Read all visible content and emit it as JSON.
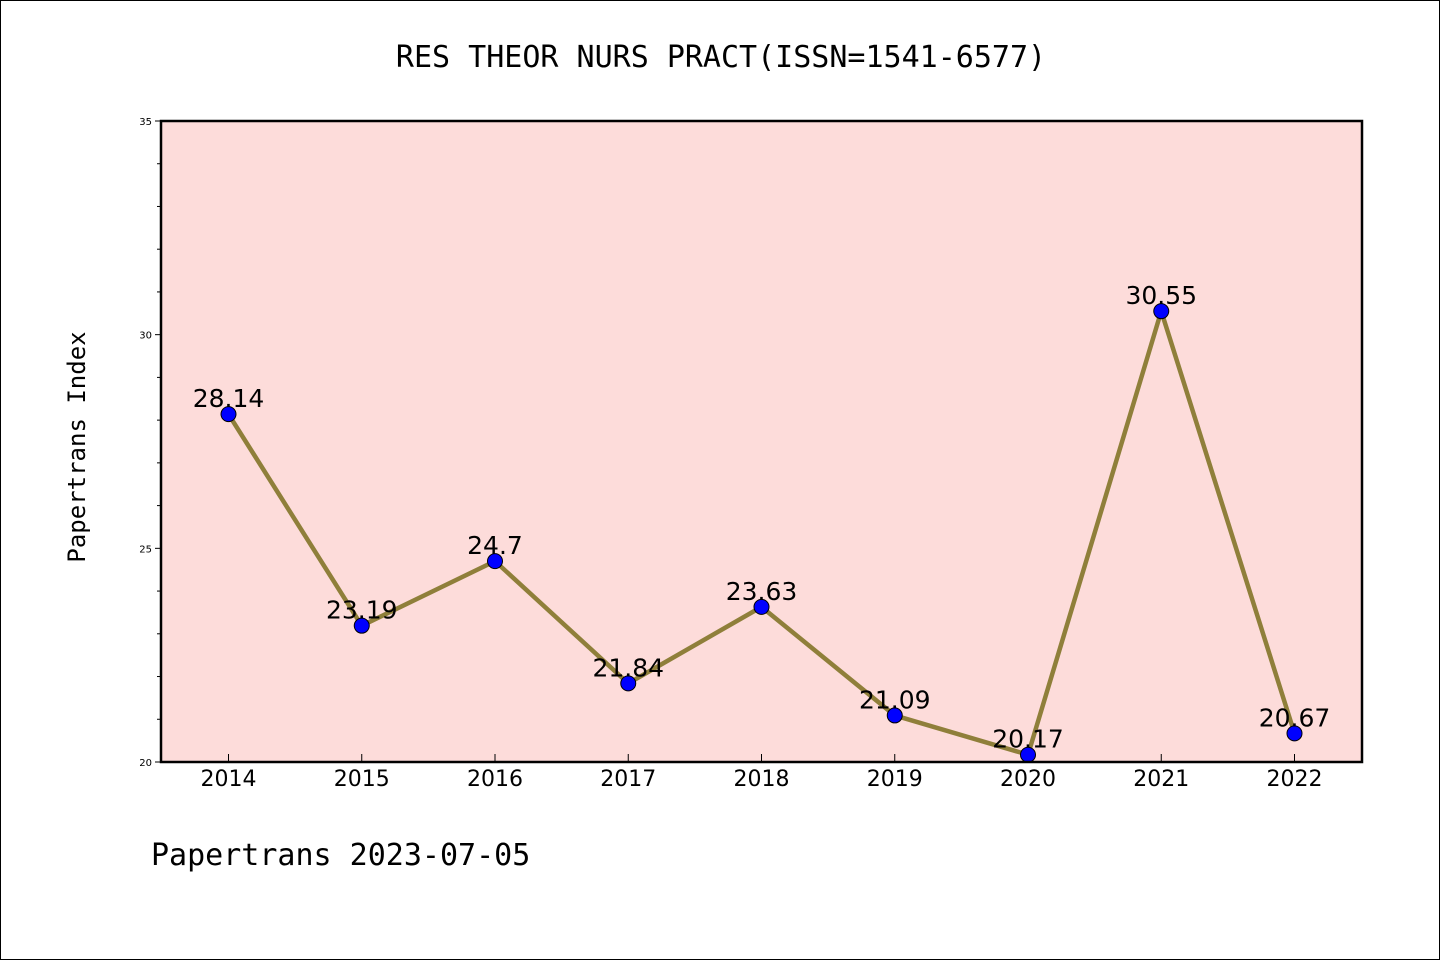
{
  "chart_data": {
    "type": "line",
    "title": "RES THEOR NURS PRACT(ISSN=1541-6577)",
    "ylabel": "Papertrans Index",
    "xlabel": "",
    "categories": [
      "2014",
      "2015",
      "2016",
      "2017",
      "2018",
      "2019",
      "2020",
      "2021",
      "2022"
    ],
    "series": [
      {
        "values": [
          28.14,
          23.19,
          24.7,
          21.84,
          23.63,
          21.09,
          20.17,
          30.55,
          20.67
        ]
      }
    ],
    "data_labels": [
      "28.14",
      "23.19",
      "24.7",
      "21.84",
      "23.63",
      "21.09",
      "20.17",
      "30.55",
      "20.67"
    ],
    "ylim": [
      20,
      35
    ],
    "yticks": [
      20,
      25,
      30,
      35
    ],
    "ytick_labels": [
      "20",
      "25",
      "30",
      "35"
    ],
    "grid": false,
    "legend": "none",
    "colors": {
      "plot_background": "#fddcda",
      "line": "#8f7f3a",
      "marker": "#0000ff",
      "frame": "#000000"
    }
  },
  "footer": "Papertrans 2023-07-05"
}
